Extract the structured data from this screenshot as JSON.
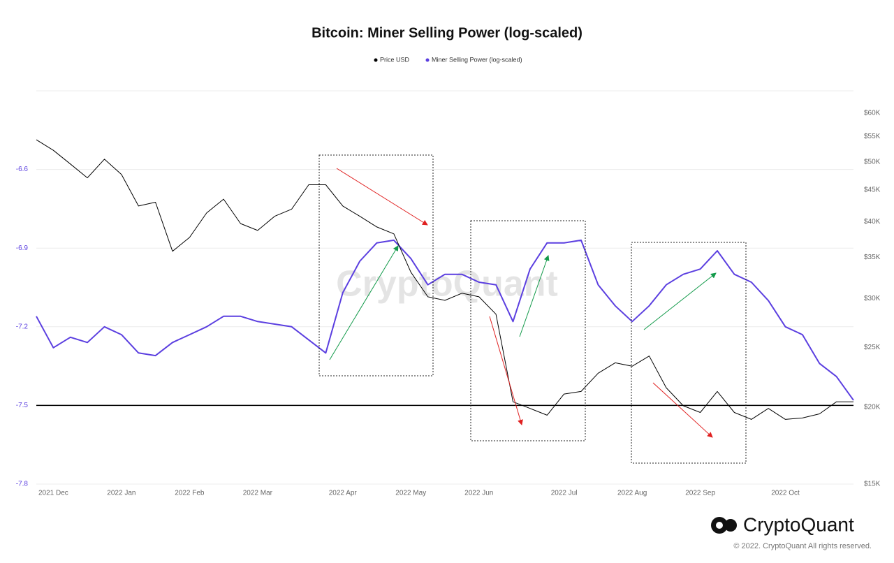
{
  "chart_data": {
    "type": "line",
    "title": "Bitcoin: Miner Selling Power (log-scaled)",
    "categories": [
      null,
      "2021 Dec",
      null,
      null,
      null,
      "2022 Jan",
      null,
      null,
      null,
      "2022 Feb",
      null,
      null,
      null,
      "2022 Mar",
      null,
      null,
      null,
      null,
      "2022 Apr",
      null,
      null,
      null,
      "2022 May",
      null,
      null,
      null,
      "2022 Jun",
      null,
      null,
      null,
      null,
      "2022 Jul",
      null,
      null,
      null,
      "2022 Aug",
      null,
      null,
      null,
      "2022 Sep",
      null,
      null,
      null,
      null,
      "2022 Oct",
      null,
      null,
      null,
      null
    ],
    "series": [
      {
        "name": "Price USD",
        "color": "#000000",
        "axis": "y2",
        "values": [
          54300,
          52200,
          49600,
          47100,
          50500,
          47700,
          42400,
          43000,
          35800,
          37700,
          41300,
          43500,
          39700,
          38700,
          40800,
          41900,
          45900,
          45900,
          42400,
          40800,
          39200,
          38200,
          33100,
          30200,
          29800,
          30600,
          30200,
          28300,
          20400,
          19900,
          19400,
          21000,
          21200,
          22700,
          23600,
          23300,
          24200,
          21500,
          20100,
          19600,
          21200,
          19600,
          19100,
          19900,
          19100,
          19200,
          19500,
          20400,
          20400
        ]
      },
      {
        "name": "Miner Selling Power (log-scaled)",
        "color": "#5b3fe0",
        "values": [
          -7.16,
          -7.28,
          -7.24,
          -7.26,
          -7.2,
          -7.23,
          -7.3,
          -7.31,
          -7.26,
          -7.23,
          -7.2,
          -7.16,
          -7.16,
          -7.18,
          -7.19,
          -7.2,
          -7.25,
          -7.3,
          -7.07,
          -6.95,
          -6.88,
          -6.87,
          -6.94,
          -7.04,
          -7.0,
          -7.0,
          -7.03,
          -7.04,
          -7.18,
          -6.98,
          -6.88,
          -6.88,
          -6.87,
          -7.04,
          -7.12,
          -7.18,
          -7.12,
          -7.04,
          -7.0,
          -6.98,
          -6.91,
          -7.0,
          -7.03,
          -7.1,
          -7.2,
          -7.23,
          -7.34,
          -7.39,
          -7.48
        ]
      }
    ],
    "ylim": [
      -7.8,
      -6.3
    ],
    "yticks": [
      -7.8,
      -7.5,
      -7.2,
      -6.9,
      -6.6
    ],
    "y2lim": [
      15000,
      65200
    ],
    "y2_log": true,
    "y2ticks": [
      {
        "value": 15000,
        "label": "$15K"
      },
      {
        "value": 20000,
        "label": "$20K"
      },
      {
        "value": 25000,
        "label": "$25K"
      },
      {
        "value": 30000,
        "label": "$30K"
      },
      {
        "value": 35000,
        "label": "$35K"
      },
      {
        "value": 40000,
        "label": "$40K"
      },
      {
        "value": 45000,
        "label": "$45K"
      },
      {
        "value": 50000,
        "label": "$50K"
      },
      {
        "value": 55000,
        "label": "$55K"
      },
      {
        "value": 60000,
        "label": "$60K"
      }
    ],
    "hline": -7.5,
    "grid": true,
    "legend": "top",
    "watermark": "CryptoQuant",
    "logo_text": "CryptoQuant",
    "copyright": "© 2022. CryptoQuant All rights reserved."
  }
}
